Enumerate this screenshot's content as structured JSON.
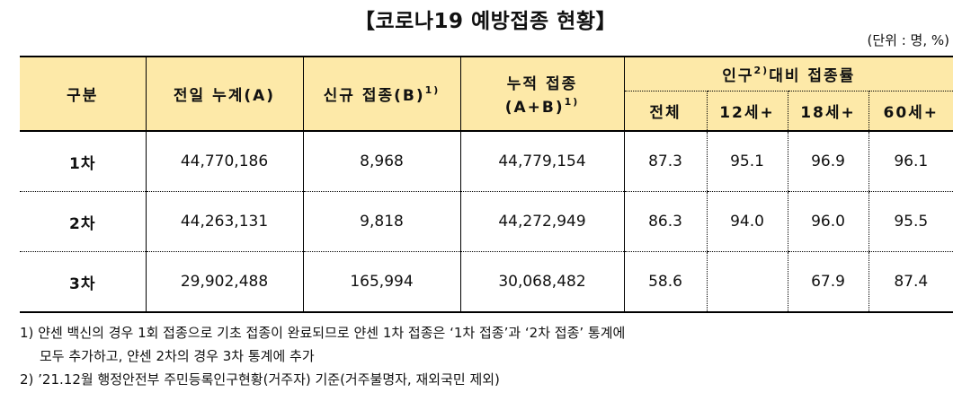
{
  "title": "【코로나19 예방접종 현황】",
  "unit": "(단위 : 명, %)",
  "headers": {
    "category": "구분",
    "prev_total": "전일 누계(A)",
    "new_label": "신규 접종(B)",
    "new_sup": "1)",
    "cum_line1": "누적 접종",
    "cum_line2": "(A+B)",
    "cum_sup": "1)",
    "ratio_prefix": "인구",
    "ratio_sup": "2)",
    "ratio_suffix": "대비 접종률",
    "sub": [
      "전체",
      "12세+",
      "18세+",
      "60세+"
    ]
  },
  "rows": [
    {
      "label": "1차",
      "prev": "44,770,186",
      "new": "8,968",
      "cum": "44,779,154",
      "all": "87.3",
      "age12": "95.1",
      "age18": "96.9",
      "age60": "96.1"
    },
    {
      "label": "2차",
      "prev": "44,263,131",
      "new": "9,818",
      "cum": "44,272,949",
      "all": "86.3",
      "age12": "94.0",
      "age18": "96.0",
      "age60": "95.5"
    },
    {
      "label": "3차",
      "prev": "29,902,488",
      "new": "165,994",
      "cum": "30,068,482",
      "all": "58.6",
      "age12": "",
      "age18": "67.9",
      "age60": "87.4"
    }
  ],
  "notes": [
    "1) 얀센 백신의 경우 1회 접종으로 기초 접종이 완료되므로 얀센 1차 접종은 ‘1차 접종’과 ‘2차 접종’ 통계에",
    "모두 추가하고, 얀센 2차의 경우 3차 통계에 추가",
    "2) ’21.12월 행정안전부 주민등록인구현황(거주자) 기준(거주불명자, 재외국민 제외)"
  ]
}
